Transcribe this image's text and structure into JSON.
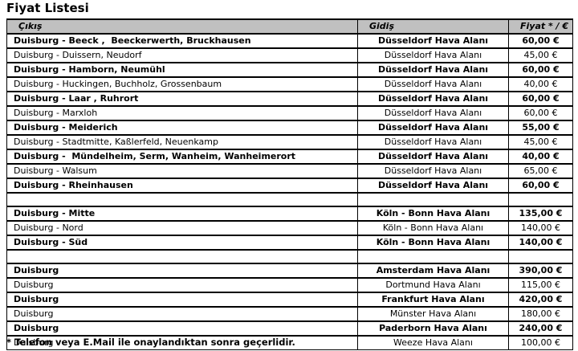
{
  "page": {
    "title": "Fiyat Listesi",
    "footnote": "* Telefon veya E.Mail ile onaylandıktan sonra geçerlidir."
  },
  "colors": {
    "header_background": "#c0c0c0",
    "border": "#000000",
    "text": "#000000",
    "page_background": "#ffffff"
  },
  "table": {
    "columns": [
      "Çıkış",
      "Gidiş",
      "Fiyat * / €"
    ],
    "rows": [
      {
        "cikis": "Duisburg - Beeck ,  Beeckerwerth, Bruckhausen",
        "gidis": "Düsseldorf Hava Alanı",
        "fiyat": "60,00 €",
        "bold": true
      },
      {
        "cikis": "Duisburg - Duissern, Neudorf",
        "gidis": "Düsseldorf Hava Alanı",
        "fiyat": "45,00 €",
        "bold": false
      },
      {
        "cikis": "Duisburg - Hamborn, Neumühl",
        "gidis": "Düsseldorf Hava Alanı",
        "fiyat": "60,00 €",
        "bold": true
      },
      {
        "cikis": "Duisburg - Huckingen, Buchholz, Grossenbaum",
        "gidis": "Düsseldorf Hava Alanı",
        "fiyat": "40,00 €",
        "bold": false
      },
      {
        "cikis": "Duisburg - Laar , Ruhrort",
        "gidis": "Düsseldorf Hava Alanı",
        "fiyat": "60,00 €",
        "bold": true
      },
      {
        "cikis": "Duisburg - Marxloh",
        "gidis": "Düsseldorf Hava Alanı",
        "fiyat": "60,00 €",
        "bold": false
      },
      {
        "cikis": "Duisburg - Meiderich",
        "gidis": "Düsseldorf Hava Alanı",
        "fiyat": "55,00 €",
        "bold": true
      },
      {
        "cikis": "Duisburg - Stadtmitte, Kaßlerfeld, Neuenkamp",
        "gidis": "Düsseldorf Hava Alanı",
        "fiyat": "45,00 €",
        "bold": false
      },
      {
        "cikis": "Duisburg -  Mündelheim, Serm, Wanheim, Wanheimerort",
        "gidis": "Düsseldorf Hava Alanı",
        "fiyat": "40,00 €",
        "bold": true
      },
      {
        "cikis": "Duisburg - Walsum",
        "gidis": "Düsseldorf Hava Alanı",
        "fiyat": "65,00 €",
        "bold": false
      },
      {
        "cikis": "Duisburg - Rheinhausen",
        "gidis": "Düsseldorf Hava Alanı",
        "fiyat": "60,00 €",
        "bold": true
      },
      {
        "cikis": "",
        "gidis": "",
        "fiyat": "",
        "bold": false
      },
      {
        "cikis": "Duisburg - Mitte",
        "gidis": "Köln - Bonn Hava Alanı",
        "fiyat": "135,00 €",
        "bold": true
      },
      {
        "cikis": "Duisburg - Nord",
        "gidis": "Köln - Bonn Hava Alanı",
        "fiyat": "140,00 €",
        "bold": false
      },
      {
        "cikis": "Duisburg - Süd",
        "gidis": "Köln - Bonn Hava Alanı",
        "fiyat": "140,00 €",
        "bold": true
      },
      {
        "cikis": "",
        "gidis": "",
        "fiyat": "",
        "bold": false
      },
      {
        "cikis": "Duisburg",
        "gidis": "Amsterdam Hava Alanı",
        "fiyat": "390,00 €",
        "bold": true
      },
      {
        "cikis": "Duisburg",
        "gidis": "Dortmund Hava Alanı",
        "fiyat": "115,00 €",
        "bold": false
      },
      {
        "cikis": "Duisburg",
        "gidis": "Frankfurt Hava Alanı",
        "fiyat": "420,00 €",
        "bold": true
      },
      {
        "cikis": "Duisburg",
        "gidis": "Münster Hava Alanı",
        "fiyat": "180,00 €",
        "bold": false
      },
      {
        "cikis": "Duisburg",
        "gidis": "Paderborn Hava Alanı",
        "fiyat": "240,00 €",
        "bold": true
      },
      {
        "cikis": "Duisburg",
        "gidis": "Weeze Hava Alanı",
        "fiyat": "100,00 €",
        "bold": false
      }
    ]
  }
}
